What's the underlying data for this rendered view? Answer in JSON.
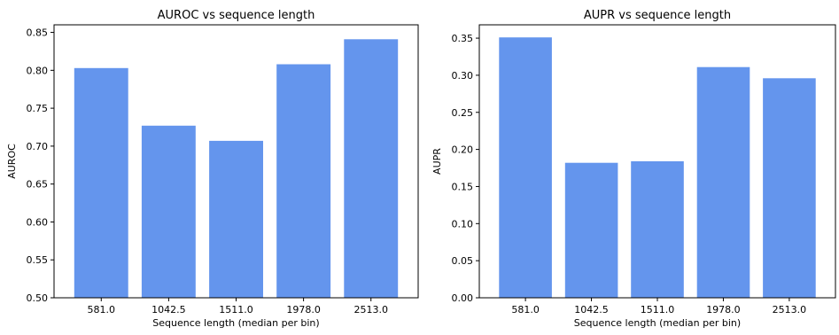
{
  "chart_data": [
    {
      "type": "bar",
      "title": "AUROC vs sequence length",
      "xlabel": "Sequence length (median per bin)",
      "ylabel": "AUROC",
      "categories": [
        "581.0",
        "1042.5",
        "1511.0",
        "1978.0",
        "2513.0"
      ],
      "values": [
        0.803,
        0.727,
        0.707,
        0.808,
        0.841
      ],
      "ylim": [
        0.5,
        0.86
      ],
      "yticks": [
        "0.50",
        "0.55",
        "0.60",
        "0.65",
        "0.70",
        "0.75",
        "0.80",
        "0.85"
      ],
      "grid": false,
      "bar_color": "#6495ED"
    },
    {
      "type": "bar",
      "title": "AUPR vs sequence length",
      "xlabel": "Sequence length (median per bin)",
      "ylabel": "AUPR",
      "categories": [
        "581.0",
        "1042.5",
        "1511.0",
        "1978.0",
        "2513.0"
      ],
      "values": [
        0.351,
        0.182,
        0.184,
        0.311,
        0.296
      ],
      "ylim": [
        0.0,
        0.368
      ],
      "yticks": [
        "0.00",
        "0.05",
        "0.10",
        "0.15",
        "0.20",
        "0.25",
        "0.30",
        "0.35"
      ],
      "grid": false,
      "bar_color": "#6495ED"
    }
  ]
}
